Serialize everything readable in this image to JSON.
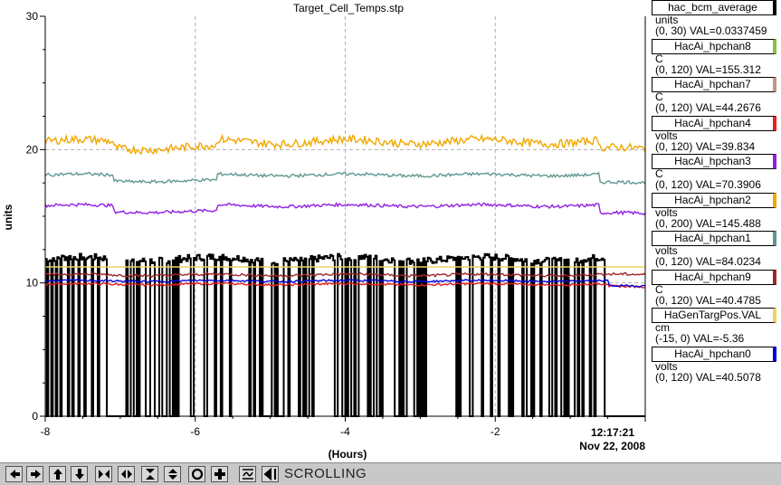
{
  "chart_data": {
    "type": "line",
    "title": "Target_Cell_Temps.stp",
    "xlabel": "(Hours)",
    "ylabel": "units",
    "xlim": [
      -8,
      0
    ],
    "ylim": [
      0,
      30
    ],
    "x_ticks": [
      -8,
      -6,
      -4,
      -2
    ],
    "y_ticks": [
      0,
      10,
      20,
      30
    ],
    "grid": true,
    "legend_position": "right",
    "end_time": "12:17:21",
    "end_date": "Nov 22, 2008",
    "series": [
      {
        "name": "hac_bcm_average",
        "unit": "units",
        "range": "(0, 30)",
        "value_text": "VAL=0.0337459",
        "color": "#000000",
        "level": 11.8,
        "noise": 0.25,
        "pattern": "dropouts"
      },
      {
        "name": "HacAi_hpchan8",
        "unit": "C",
        "range": "(0, 120)",
        "value_text": "VAL=155.312",
        "color": "#88c040",
        "level": null
      },
      {
        "name": "HacAi_hpchan7",
        "unit": "C",
        "range": "(0, 120)",
        "value_text": "VAL=44.2676",
        "color": "#c09888",
        "level": null
      },
      {
        "name": "HacAi_hpchan4",
        "unit": "volts",
        "range": "(0, 120)",
        "value_text": "VAL=39.834",
        "color": "#e82020",
        "level": 9.9,
        "noise": 0.08
      },
      {
        "name": "HacAi_hpchan3",
        "unit": "C",
        "range": "(0, 120)",
        "value_text": "VAL=70.3906",
        "color": "#9020e0",
        "level": 15.8,
        "noise": 0.12
      },
      {
        "name": "HacAi_hpchan2",
        "unit": "volts",
        "range": "(0, 200)",
        "value_text": "VAL=145.488",
        "color": "#f0a800",
        "level": 20.6,
        "noise": 0.3
      },
      {
        "name": "HacAi_hpchan1",
        "unit": "volts",
        "range": "(0, 120)",
        "value_text": "VAL=84.0234",
        "color": "#609890",
        "level": 18.1,
        "noise": 0.12
      },
      {
        "name": "HacAi_hpchan9",
        "unit": "C",
        "range": "(0, 120)",
        "value_text": "VAL=40.4785",
        "color": "#a02828",
        "level": 10.6,
        "noise": 0.1
      },
      {
        "name": "HaGenTargPos.VAL",
        "unit": "cm",
        "range": "(-15, 0)",
        "value_text": "VAL=-5.36",
        "color": "#e8d860",
        "level": 11.2,
        "noise": 0
      },
      {
        "name": "HacAi_hpchan0",
        "unit": "volts",
        "range": "(0, 120)",
        "value_text": "VAL=40.5078",
        "color": "#0000e0",
        "level": 10.15,
        "noise": 0.07
      }
    ]
  },
  "toolbar": {
    "status_label": "SCROLLING",
    "buttons": [
      {
        "icon": "arrow-left-icon"
      },
      {
        "icon": "arrow-right-icon"
      },
      {
        "icon": "arrow-up-icon"
      },
      {
        "icon": "arrow-down-icon"
      },
      {
        "icon": "zoom-in-x-icon"
      },
      {
        "icon": "zoom-out-x-icon"
      },
      {
        "icon": "zoom-in-y-icon"
      },
      {
        "icon": "zoom-out-y-icon"
      },
      {
        "icon": "record-icon"
      },
      {
        "icon": "plus-icon"
      },
      {
        "icon": "autoscale-icon"
      },
      {
        "icon": "pause-scroll-icon"
      }
    ]
  }
}
